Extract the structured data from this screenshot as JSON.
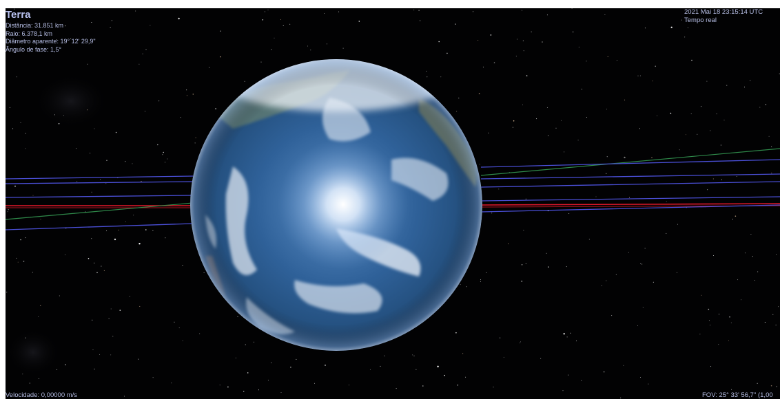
{
  "object": {
    "name": "Terra",
    "distance": "Distância: 31.851 km",
    "radius": "Raio: 6.378,1 km",
    "apparent_diameter": "Diâmetro aparente: 19° 12' 29,9\"",
    "phase_angle": "Ângulo de fase: 1,5°"
  },
  "time": {
    "datetime": "2021 Mai 18 23:15:14 UTC",
    "mode": "Tempo real"
  },
  "status": {
    "velocity": "Velocidade: 0,00000 m/s",
    "fov": "FOV: 25° 33' 56,7\" (1,00"
  },
  "colors": {
    "background": "#020203",
    "hud_text": "#b7bfe6",
    "orbit_blue": "#4a4fd6",
    "orbit_red": "#e2182a",
    "orbit_green": "#2f8a4a",
    "ocean": "#2a5a98"
  }
}
